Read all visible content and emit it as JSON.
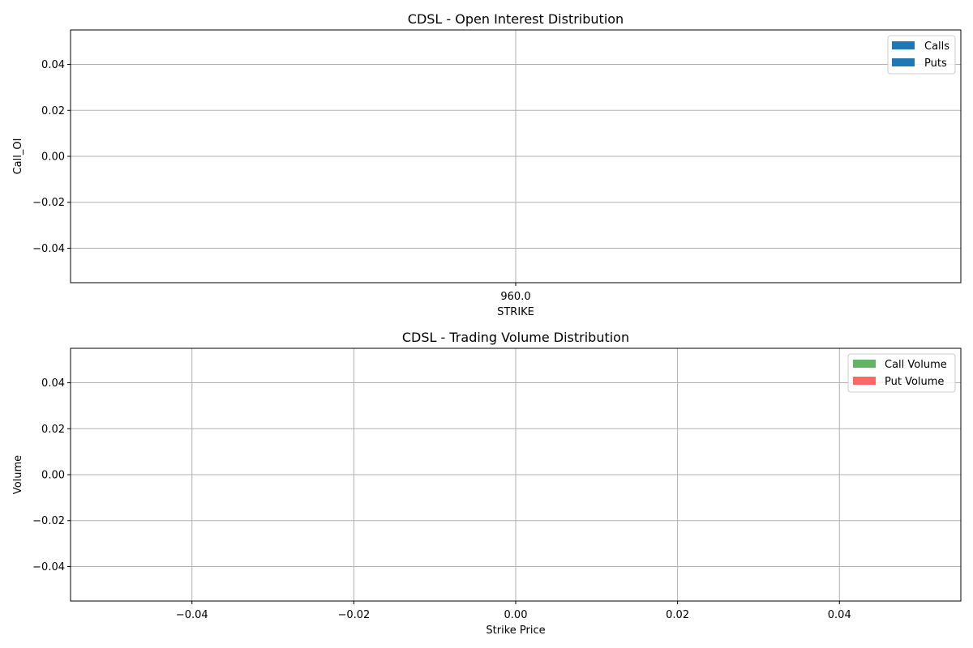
{
  "chart_data": [
    {
      "type": "bar",
      "title": "CDSL - Open Interest Distribution",
      "xlabel": "STRIKE",
      "ylabel": "Call_OI",
      "categories": [
        "960.0"
      ],
      "xticks": [
        "960.0"
      ],
      "yticks": [
        -0.04,
        -0.02,
        0.0,
        0.02,
        0.04
      ],
      "ytick_labels": [
        "−0.04",
        "−0.02",
        "0.00",
        "0.02",
        "0.04"
      ],
      "ylim": [
        -0.055,
        0.055
      ],
      "grid": true,
      "legend_position": "top-right",
      "series": [
        {
          "name": "Calls",
          "values": [
            0
          ],
          "color": "#1f77b4"
        },
        {
          "name": "Puts",
          "values": [
            0
          ],
          "color": "#1f77b4"
        }
      ]
    },
    {
      "type": "bar",
      "title": "CDSL - Trading Volume Distribution",
      "xlabel": "Strike Price",
      "ylabel": "Volume",
      "xticks": [
        -0.04,
        -0.02,
        0.0,
        0.02,
        0.04
      ],
      "xtick_labels": [
        "−0.04",
        "−0.02",
        "0.00",
        "0.02",
        "0.04"
      ],
      "xlim": [
        -0.055,
        0.055
      ],
      "yticks": [
        -0.04,
        -0.02,
        0.0,
        0.02,
        0.04
      ],
      "ytick_labels": [
        "−0.04",
        "−0.02",
        "0.00",
        "0.02",
        "0.04"
      ],
      "ylim": [
        -0.055,
        0.055
      ],
      "grid": true,
      "legend_position": "top-right",
      "series": [
        {
          "name": "Call Volume",
          "values": [],
          "color": "#66b266"
        },
        {
          "name": "Put Volume",
          "values": [],
          "color": "#ff6666"
        }
      ]
    }
  ]
}
